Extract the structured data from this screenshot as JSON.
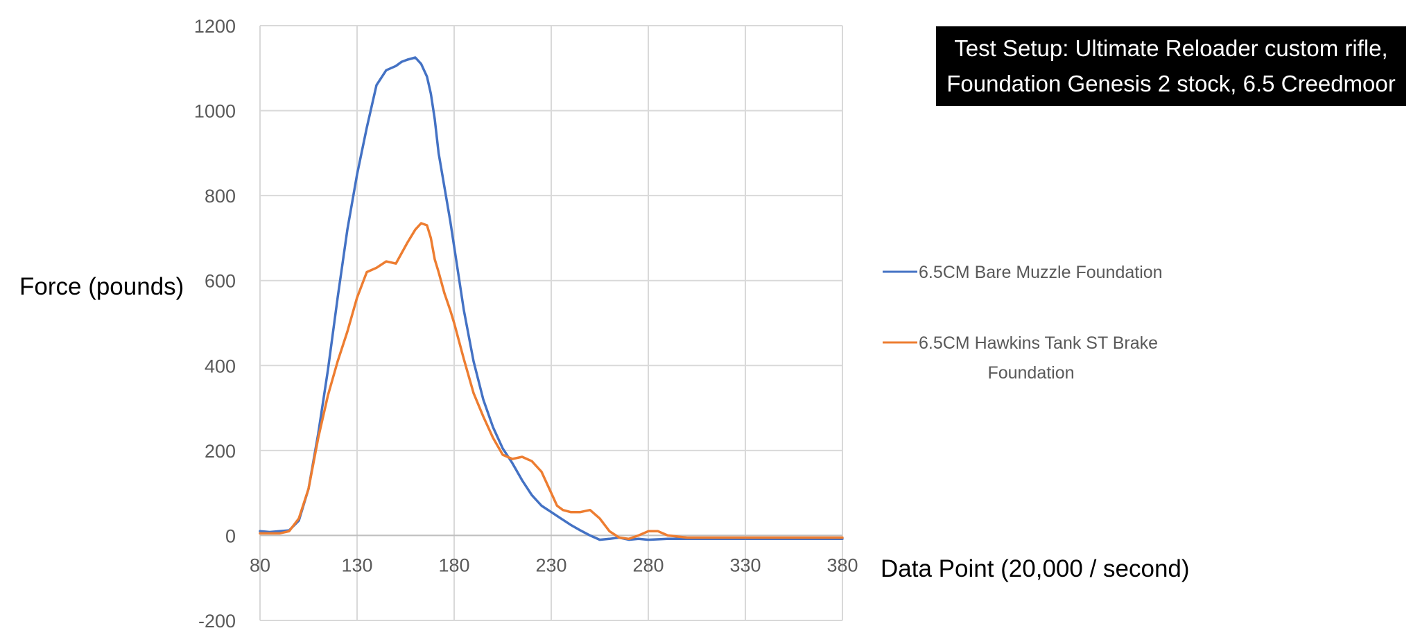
{
  "chart_data": {
    "type": "line",
    "title": "",
    "xlabel": "Data Point (20,000 / second)",
    "ylabel": "Force (pounds)",
    "xlim": [
      80,
      380
    ],
    "ylim": [
      -200,
      1200
    ],
    "xticks": [
      80,
      130,
      180,
      230,
      280,
      330,
      380
    ],
    "yticks": [
      -200,
      0,
      200,
      400,
      600,
      800,
      1000,
      1200
    ],
    "xtick_labels": [
      "80",
      "130",
      "180",
      "230",
      "280",
      "330",
      "380"
    ],
    "ytick_labels": [
      "-200",
      "0",
      "200",
      "400",
      "600",
      "800",
      "1000",
      "1200"
    ],
    "grid": true,
    "legend_position": "right",
    "series": [
      {
        "name": "6.5CM Bare Muzzle Foundation",
        "color": "#4472C4",
        "x": [
          80,
          85,
          90,
          95,
          100,
          105,
          110,
          115,
          120,
          125,
          130,
          135,
          140,
          145,
          150,
          153,
          156,
          160,
          163,
          166,
          168,
          170,
          172,
          175,
          178,
          180,
          185,
          190,
          195,
          200,
          205,
          210,
          215,
          220,
          225,
          230,
          235,
          240,
          245,
          250,
          255,
          260,
          265,
          270,
          275,
          280,
          290,
          300,
          310,
          320,
          330,
          340,
          350,
          360,
          370,
          380
        ],
        "y": [
          10,
          8,
          10,
          12,
          35,
          110,
          240,
          390,
          560,
          720,
          850,
          960,
          1060,
          1095,
          1105,
          1115,
          1120,
          1125,
          1110,
          1080,
          1040,
          980,
          900,
          820,
          740,
          680,
          530,
          410,
          320,
          255,
          205,
          170,
          130,
          95,
          70,
          55,
          40,
          25,
          12,
          0,
          -10,
          -8,
          -5,
          -10,
          -8,
          -10,
          -8,
          -8,
          -8,
          -8,
          -8,
          -8,
          -8,
          -8,
          -8,
          -8
        ]
      },
      {
        "name": "6.5CM Hawkins Tank ST Brake Foundation",
        "color": "#ED7D31",
        "x": [
          80,
          85,
          90,
          95,
          100,
          105,
          110,
          115,
          120,
          125,
          130,
          135,
          140,
          145,
          150,
          153,
          156,
          160,
          163,
          166,
          168,
          170,
          172,
          175,
          178,
          180,
          185,
          190,
          195,
          200,
          205,
          210,
          215,
          220,
          225,
          230,
          233,
          236,
          240,
          245,
          250,
          255,
          260,
          265,
          270,
          275,
          280,
          285,
          290,
          300,
          310,
          320,
          330,
          340,
          350,
          360,
          370,
          380
        ],
        "y": [
          5,
          5,
          5,
          10,
          40,
          110,
          230,
          330,
          410,
          480,
          560,
          620,
          630,
          645,
          640,
          665,
          690,
          720,
          735,
          730,
          700,
          650,
          620,
          570,
          530,
          500,
          415,
          335,
          280,
          230,
          190,
          180,
          185,
          175,
          150,
          100,
          70,
          60,
          55,
          55,
          60,
          40,
          10,
          -5,
          -8,
          0,
          10,
          10,
          0,
          -5,
          -5,
          -5,
          -5,
          -5,
          -5,
          -5,
          -5,
          -5
        ]
      }
    ],
    "annotation": {
      "line1": "Test Setup: Ultimate Reloader custom rifle,",
      "line2": "Foundation Genesis 2 stock, 6.5 Creedmoor"
    },
    "legend": {
      "item1": "6.5CM Bare Muzzle Foundation",
      "item2_line1": "6.5CM Hawkins Tank ST Brake",
      "item2_line2": "Foundation"
    }
  }
}
